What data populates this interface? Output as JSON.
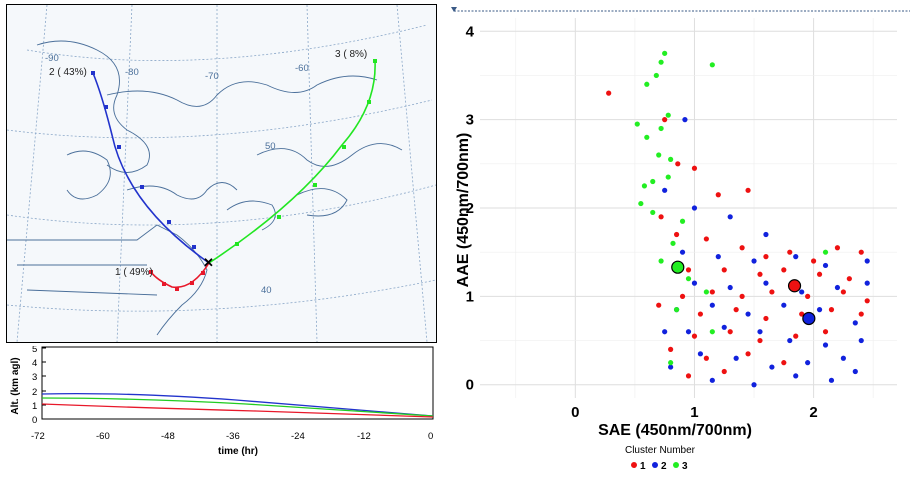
{
  "trajectory_map": {
    "clusters": [
      {
        "label": "1 ( 49%)",
        "color": "#e8182a"
      },
      {
        "label": "2 ( 43%)",
        "color": "#2233cc"
      },
      {
        "label": "3 (  8%)",
        "color": "#22e622"
      }
    ],
    "longitude_labels": [
      "-90",
      "-80",
      "-70",
      "-60"
    ],
    "latitude_labels": [
      "50",
      "40"
    ]
  },
  "altitude_plot": {
    "ylabel": "Alt. (km agl)",
    "xlabel": "time (hr)",
    "yticks": [
      "0",
      "1",
      "2",
      "3",
      "4",
      "5"
    ],
    "xticks": [
      "-72",
      "-60",
      "-48",
      "-36",
      "-24",
      "-12",
      "0"
    ]
  },
  "chart_data": {
    "type": "scatter",
    "xlabel": "SAE (450nm/700nm)",
    "ylabel": "AAE (450nm/700nm)",
    "xlim": [
      -0.8,
      2.7
    ],
    "ylim": [
      -0.15,
      4.15
    ],
    "xticks": [
      "0",
      "1",
      "2"
    ],
    "yticks": [
      "0",
      "1",
      "2",
      "3",
      "4"
    ],
    "grid": true,
    "legend": {
      "title": "Cluster Number",
      "position": "bottom",
      "entries": [
        {
          "name": "1",
          "color": "#ee1111"
        },
        {
          "name": "2",
          "color": "#1122dd"
        },
        {
          "name": "3",
          "color": "#22ee22"
        }
      ]
    },
    "series": [
      {
        "name": "1",
        "color": "#ee1111",
        "centroid": [
          1.84,
          1.12
        ],
        "points": [
          [
            0.28,
            3.3
          ],
          [
            0.75,
            3.0
          ],
          [
            0.86,
            2.5
          ],
          [
            1.0,
            2.45
          ],
          [
            1.2,
            2.15
          ],
          [
            1.45,
            2.2
          ],
          [
            0.85,
            1.7
          ],
          [
            1.1,
            1.65
          ],
          [
            1.4,
            1.55
          ],
          [
            1.6,
            1.45
          ],
          [
            1.8,
            1.5
          ],
          [
            2.0,
            1.4
          ],
          [
            2.2,
            1.55
          ],
          [
            2.4,
            1.5
          ],
          [
            0.95,
            1.3
          ],
          [
            1.25,
            1.3
          ],
          [
            1.55,
            1.25
          ],
          [
            1.75,
            1.3
          ],
          [
            2.05,
            1.25
          ],
          [
            2.3,
            1.2
          ],
          [
            0.9,
            1.0
          ],
          [
            1.15,
            1.05
          ],
          [
            1.4,
            1.0
          ],
          [
            1.65,
            1.05
          ],
          [
            1.95,
            1.0
          ],
          [
            2.25,
            1.05
          ],
          [
            2.45,
            0.95
          ],
          [
            1.05,
            0.8
          ],
          [
            1.35,
            0.85
          ],
          [
            1.6,
            0.75
          ],
          [
            1.9,
            0.8
          ],
          [
            2.15,
            0.85
          ],
          [
            2.4,
            0.8
          ],
          [
            1.0,
            0.55
          ],
          [
            1.3,
            0.6
          ],
          [
            1.55,
            0.5
          ],
          [
            1.85,
            0.55
          ],
          [
            2.1,
            0.6
          ],
          [
            1.1,
            0.3
          ],
          [
            1.45,
            0.35
          ],
          [
            1.75,
            0.25
          ],
          [
            0.95,
            0.1
          ],
          [
            1.25,
            0.15
          ],
          [
            0.8,
            0.4
          ],
          [
            0.7,
            0.9
          ],
          [
            0.72,
            1.9
          ]
        ]
      },
      {
        "name": "2",
        "color": "#1122dd",
        "centroid": [
          1.96,
          0.75
        ],
        "points": [
          [
            0.92,
            3.0
          ],
          [
            0.75,
            2.2
          ],
          [
            1.0,
            2.0
          ],
          [
            1.3,
            1.9
          ],
          [
            1.6,
            1.7
          ],
          [
            0.9,
            1.5
          ],
          [
            1.2,
            1.45
          ],
          [
            1.5,
            1.4
          ],
          [
            1.85,
            1.45
          ],
          [
            2.1,
            1.35
          ],
          [
            2.45,
            1.4
          ],
          [
            1.0,
            1.15
          ],
          [
            1.3,
            1.1
          ],
          [
            1.6,
            1.15
          ],
          [
            1.9,
            1.05
          ],
          [
            2.2,
            1.1
          ],
          [
            2.45,
            1.15
          ],
          [
            0.85,
            0.85
          ],
          [
            1.15,
            0.9
          ],
          [
            1.45,
            0.8
          ],
          [
            1.75,
            0.9
          ],
          [
            2.05,
            0.85
          ],
          [
            2.35,
            0.7
          ],
          [
            0.95,
            0.6
          ],
          [
            1.25,
            0.65
          ],
          [
            1.55,
            0.6
          ],
          [
            1.8,
            0.5
          ],
          [
            2.1,
            0.45
          ],
          [
            2.4,
            0.5
          ],
          [
            1.05,
            0.35
          ],
          [
            1.35,
            0.3
          ],
          [
            1.65,
            0.2
          ],
          [
            1.95,
            0.25
          ],
          [
            2.25,
            0.3
          ],
          [
            1.15,
            0.05
          ],
          [
            1.5,
            0.0
          ],
          [
            1.85,
            0.1
          ],
          [
            2.15,
            0.05
          ],
          [
            0.8,
            0.2
          ],
          [
            0.75,
            0.6
          ],
          [
            2.35,
            0.15
          ]
        ]
      },
      {
        "name": "3",
        "color": "#22ee22",
        "centroid": [
          0.86,
          1.33
        ],
        "points": [
          [
            0.75,
            3.75
          ],
          [
            0.72,
            3.65
          ],
          [
            0.68,
            3.5
          ],
          [
            0.6,
            3.4
          ],
          [
            1.15,
            3.62
          ],
          [
            0.52,
            2.95
          ],
          [
            0.6,
            2.8
          ],
          [
            0.72,
            2.9
          ],
          [
            0.78,
            3.05
          ],
          [
            0.7,
            2.6
          ],
          [
            0.8,
            2.55
          ],
          [
            0.65,
            2.3
          ],
          [
            0.78,
            2.35
          ],
          [
            0.58,
            2.25
          ],
          [
            0.55,
            2.05
          ],
          [
            0.65,
            1.95
          ],
          [
            0.9,
            1.85
          ],
          [
            0.82,
            1.6
          ],
          [
            0.72,
            1.4
          ],
          [
            0.95,
            1.2
          ],
          [
            1.1,
            1.05
          ],
          [
            0.85,
            0.85
          ],
          [
            1.15,
            0.6
          ],
          [
            0.8,
            0.25
          ],
          [
            2.1,
            1.5
          ]
        ]
      }
    ]
  }
}
